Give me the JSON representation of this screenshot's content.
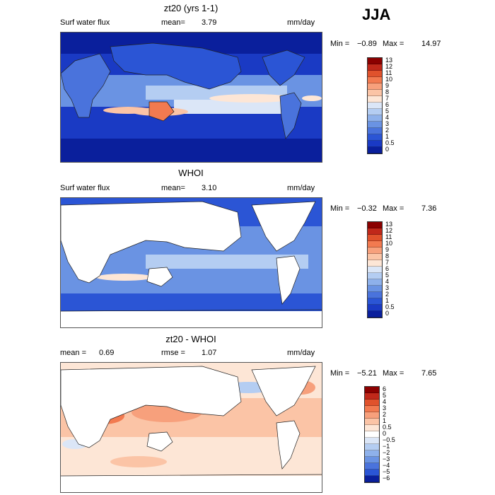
{
  "season": "JJA",
  "panels": [
    {
      "title": "zt20 (yrs 1-1)",
      "left_label": "Surf water flux",
      "mean_label": "mean=",
      "mean_value": "3.79",
      "units": "mm/day",
      "min_label": "Min =",
      "min_value": "−0.89",
      "max_label": "Max =",
      "max_value": "14.97",
      "ocean_only": false,
      "colorbar_labels": [
        "13",
        "12",
        "11",
        "10",
        "9",
        "8",
        "7",
        "6",
        "5",
        "4",
        "3",
        "2",
        "1",
        "0.5",
        "0"
      ],
      "colorbar_colors": [
        "#8b0000",
        "#c0281a",
        "#e0522c",
        "#f27a50",
        "#f7a07c",
        "#fbc4a6",
        "#fde6d6",
        "#dbe6f7",
        "#b4cdf2",
        "#8eb1eb",
        "#6a93e3",
        "#4a73dc",
        "#2b55d5",
        "#1a3ac4",
        "#0a1f9c"
      ]
    },
    {
      "title": "WHOI",
      "left_label": "Surf water flux",
      "mean_label": "mean=",
      "mean_value": "3.10",
      "units": "mm/day",
      "min_label": "Min =",
      "min_value": "−0.32",
      "max_label": "Max =",
      "max_value": "7.36",
      "ocean_only": true,
      "colorbar_labels": [
        "13",
        "12",
        "11",
        "10",
        "9",
        "8",
        "7",
        "6",
        "5",
        "4",
        "3",
        "2",
        "1",
        "0.5",
        "0"
      ],
      "colorbar_colors": [
        "#8b0000",
        "#c0281a",
        "#e0522c",
        "#f27a50",
        "#f7a07c",
        "#fbc4a6",
        "#fde6d6",
        "#dbe6f7",
        "#b4cdf2",
        "#8eb1eb",
        "#6a93e3",
        "#4a73dc",
        "#2b55d5",
        "#1a3ac4",
        "#0a1f9c"
      ]
    },
    {
      "title": "zt20 - WHOI",
      "left_label": "mean =",
      "mean_label": "rmse =",
      "left_value": "0.69",
      "mean_value": "1.07",
      "units": "mm/day",
      "min_label": "Min =",
      "min_value": "−5.21",
      "max_label": "Max =",
      "max_value": "7.65",
      "ocean_only": true,
      "colorbar_labels": [
        "6",
        "5",
        "4",
        "3",
        "2",
        "1",
        "0.5",
        "0",
        "−0.5",
        "−1",
        "−2",
        "−3",
        "−4",
        "−5",
        "−6"
      ],
      "colorbar_colors": [
        "#8b0000",
        "#c0281a",
        "#e0522c",
        "#f27a50",
        "#f7a07c",
        "#fbc4a6",
        "#fde6d6",
        "#ffffff",
        "#dbe6f7",
        "#b4cdf2",
        "#8eb1eb",
        "#6a93e3",
        "#4a73dc",
        "#2b55d5",
        "#0a1f9c"
      ]
    }
  ]
}
